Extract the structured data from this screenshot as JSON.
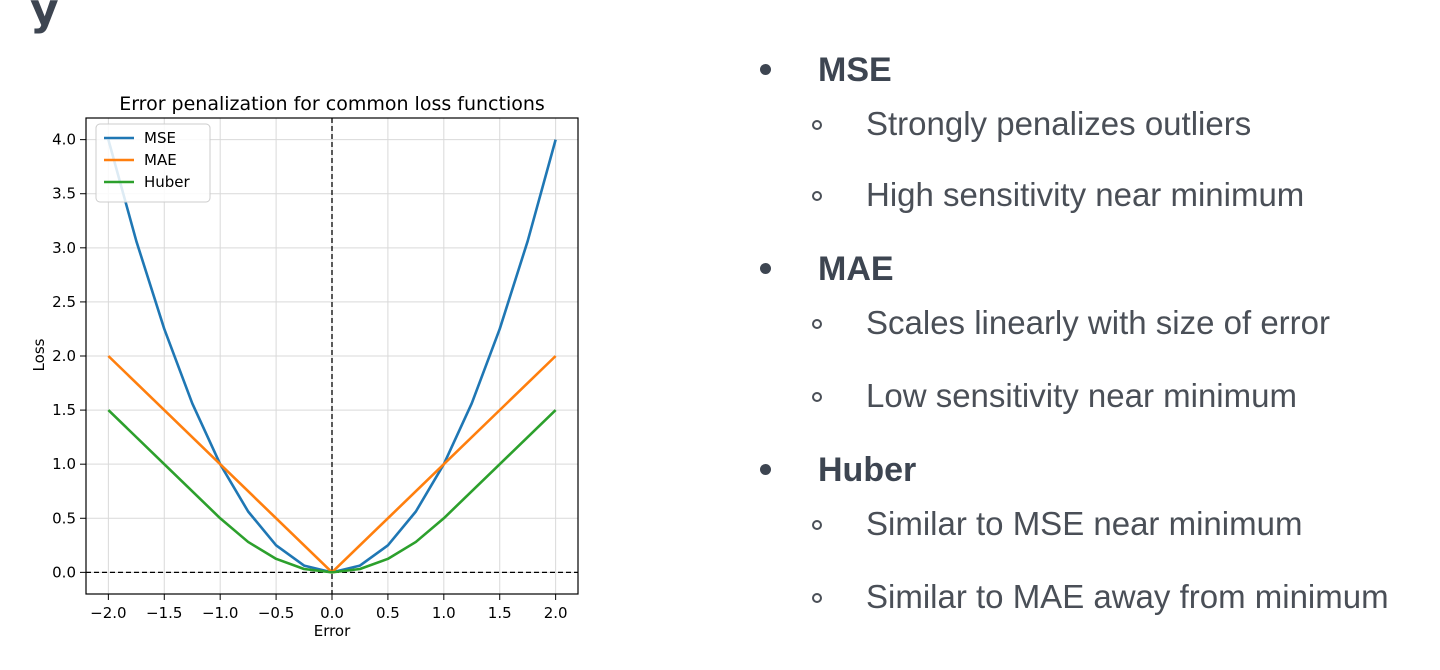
{
  "page": {
    "heading_fragment": "y"
  },
  "chart_data": {
    "type": "line",
    "title": "Error penalization for common loss functions",
    "xlabel": "Error",
    "ylabel": "Loss",
    "xlim": [
      -2.2,
      2.2
    ],
    "ylim": [
      -0.2,
      4.2
    ],
    "xticks": [
      -2.0,
      -1.5,
      -1.0,
      -0.5,
      0.0,
      0.5,
      1.0,
      1.5,
      2.0
    ],
    "xtick_labels": [
      "−2.0",
      "−1.5",
      "−1.0",
      "−0.5",
      "0.0",
      "0.5",
      "1.0",
      "1.5",
      "2.0"
    ],
    "yticks": [
      0.0,
      0.5,
      1.0,
      1.5,
      2.0,
      2.5,
      3.0,
      3.5,
      4.0
    ],
    "ytick_labels": [
      "0.0",
      "0.5",
      "1.0",
      "1.5",
      "2.0",
      "2.5",
      "3.0",
      "3.5",
      "4.0"
    ],
    "grid": true,
    "legend_position": "top-left",
    "reference_lines": {
      "x": 0,
      "y": 0,
      "style": "dashed",
      "color": "#000000"
    },
    "series": [
      {
        "name": "MSE",
        "color": "#1f77b4",
        "x": [
          -2.0,
          -1.75,
          -1.5,
          -1.25,
          -1.0,
          -0.75,
          -0.5,
          -0.25,
          0.0,
          0.25,
          0.5,
          0.75,
          1.0,
          1.25,
          1.5,
          1.75,
          2.0
        ],
        "y": [
          4.0,
          3.0625,
          2.25,
          1.5625,
          1.0,
          0.5625,
          0.25,
          0.0625,
          0.0,
          0.0625,
          0.25,
          0.5625,
          1.0,
          1.5625,
          2.25,
          3.0625,
          4.0
        ]
      },
      {
        "name": "MAE",
        "color": "#ff7f0e",
        "x": [
          -2.0,
          -1.0,
          0.0,
          1.0,
          2.0
        ],
        "y": [
          2.0,
          1.0,
          0.0,
          1.0,
          2.0
        ]
      },
      {
        "name": "Huber",
        "color": "#2ca02c",
        "x": [
          -2.0,
          -1.5,
          -1.0,
          -0.75,
          -0.5,
          -0.25,
          0.0,
          0.25,
          0.5,
          0.75,
          1.0,
          1.5,
          2.0
        ],
        "y": [
          1.5,
          1.0,
          0.5,
          0.28125,
          0.125,
          0.03125,
          0.0,
          0.03125,
          0.125,
          0.28125,
          0.5,
          1.0,
          1.5
        ]
      }
    ]
  },
  "bullets": [
    {
      "label": "MSE",
      "subs": [
        "Strongly penalizes outliers",
        "High sensitivity near minimum"
      ]
    },
    {
      "label": "MAE",
      "subs": [
        "Scales linearly with size of error",
        "Low sensitivity near minimum"
      ]
    },
    {
      "label": "Huber",
      "subs": [
        "Similar to MSE near minimum",
        "Similar to MAE away from minimum"
      ]
    }
  ]
}
